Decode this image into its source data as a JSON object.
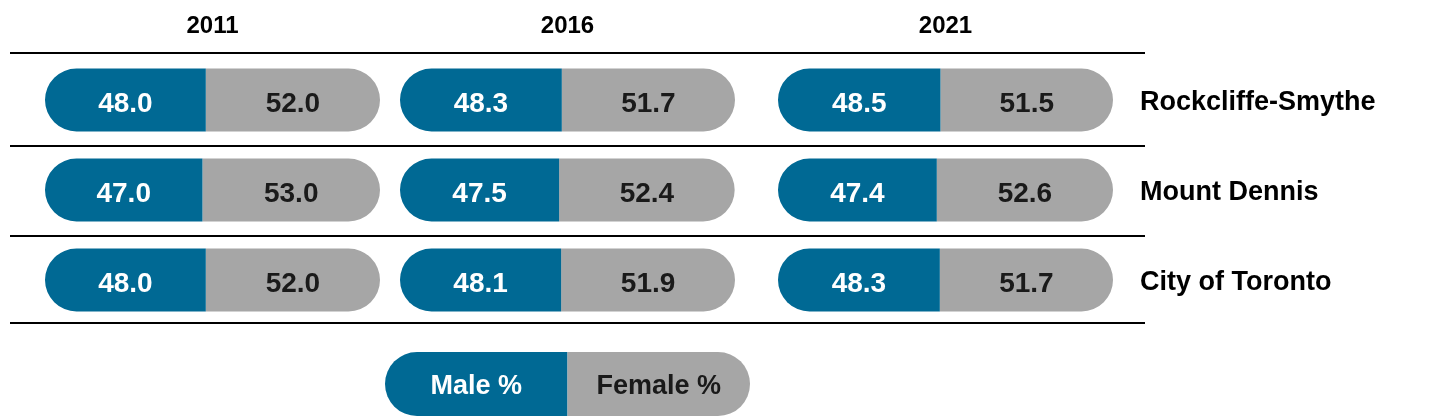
{
  "chart_data": [
    {
      "type": "bar",
      "orientation": "horizontal",
      "stacked": true,
      "title": "2011",
      "categories": [
        null,
        null,
        null
      ],
      "xlim": [
        0,
        100
      ],
      "tick_labels": false,
      "legend": false,
      "series": [
        {
          "color": "#006994",
          "values": [
            48.0,
            47.0,
            48.0
          ],
          "value_labels": [
            "48.0",
            "47.0",
            "48.0"
          ]
        },
        {
          "color": "#a6a6a6",
          "values": [
            52.0,
            53.0,
            52.0
          ],
          "value_labels": [
            "52.0",
            "53.0",
            "52.0"
          ]
        }
      ]
    },
    {
      "type": "bar",
      "orientation": "horizontal",
      "stacked": true,
      "title": "2016",
      "categories": [
        null,
        null,
        null
      ],
      "xlim": [
        0,
        100
      ],
      "tick_labels": false,
      "legend": "bottom",
      "series": [
        {
          "name": "Male %",
          "color": "#006994",
          "values": [
            48.3,
            47.5,
            48.1
          ],
          "value_labels": [
            "48.3",
            "47.5",
            "48.1"
          ]
        },
        {
          "name": "Female %",
          "color": "#a6a6a6",
          "values": [
            51.7,
            52.4,
            51.9
          ],
          "value_labels": [
            "51.7",
            "52.4",
            "51.9"
          ]
        }
      ]
    },
    {
      "type": "bar",
      "orientation": "horizontal",
      "stacked": true,
      "title": "2021",
      "categories": [
        "Rockcliffe-Smythe",
        "Mount Dennis",
        "City of Toronto"
      ],
      "xlim": [
        0,
        100
      ],
      "tick_labels": "y",
      "legend": false,
      "series": [
        {
          "color": "#006994",
          "values": [
            48.5,
            47.4,
            48.3
          ],
          "value_labels": [
            "48.5",
            "47.4",
            "48.3"
          ]
        },
        {
          "color": "#a6a6a6",
          "values": [
            51.5,
            52.6,
            51.7
          ],
          "value_labels": [
            "51.5",
            "52.6",
            "51.7"
          ]
        }
      ]
    }
  ]
}
